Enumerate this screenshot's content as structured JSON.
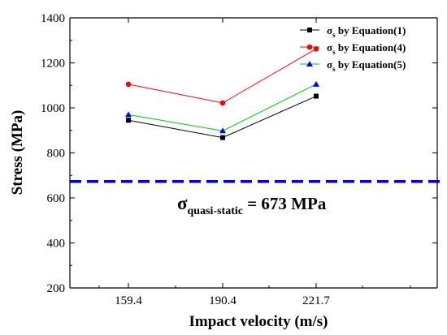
{
  "chart_data": {
    "type": "line",
    "xlabel": "Impact velocity (m/s)",
    "ylabel": "Stress (MPa)",
    "categories": [
      "159.4",
      "190.4",
      "221.7"
    ],
    "ylim": [
      200,
      1400
    ],
    "yticks": [
      200,
      400,
      600,
      800,
      1000,
      1200,
      1400
    ],
    "grid": false,
    "legend_position": "top-right",
    "series": [
      {
        "symbol": "σ",
        "subscript": "s",
        "text": " by Equation(1)",
        "values": [
          945,
          868,
          1052
        ],
        "color": "#000000",
        "marker": "square"
      },
      {
        "symbol": "σ",
        "subscript": "s",
        "text": " by Equation(4)",
        "values": [
          1105,
          1022,
          1262
        ],
        "color": "#ff0000",
        "marker": "circle"
      },
      {
        "symbol": "σ",
        "subscript": "s",
        "text": " by Equation(5)",
        "values": [
          970,
          898,
          1105
        ],
        "color": "#0000ff",
        "line_color": "#00cc00",
        "marker": "triangle"
      }
    ],
    "reference_line": {
      "value": 673,
      "color": "#0000dd",
      "style": "dashed",
      "label_symbol": "σ",
      "label_subscript": "quasi-static",
      "label_text": " = 673 MPa"
    }
  }
}
